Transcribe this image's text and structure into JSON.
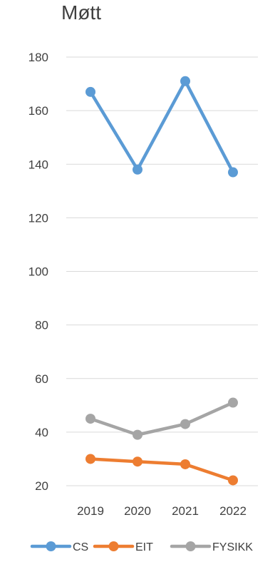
{
  "chart_data": {
    "type": "line",
    "title": "Møtt",
    "xlabel": "",
    "ylabel": "",
    "categories": [
      "2019",
      "2020",
      "2021",
      "2022"
    ],
    "ylim": [
      20,
      180
    ],
    "y_ticks": [
      20,
      40,
      60,
      80,
      100,
      120,
      140,
      160,
      180
    ],
    "grid": true,
    "legend_position": "bottom",
    "series": [
      {
        "name": "CS",
        "values": [
          167,
          138,
          171,
          137
        ],
        "color": "#5B9BD5"
      },
      {
        "name": "EIT",
        "values": [
          30,
          29,
          28,
          22
        ],
        "color": "#ED7D31"
      },
      {
        "name": "FYSIKK",
        "values": [
          45,
          39,
          43,
          51
        ],
        "color": "#A5A5A5"
      }
    ],
    "axis_label_color": "#404040",
    "gridline_color": "#D9D9D9"
  }
}
